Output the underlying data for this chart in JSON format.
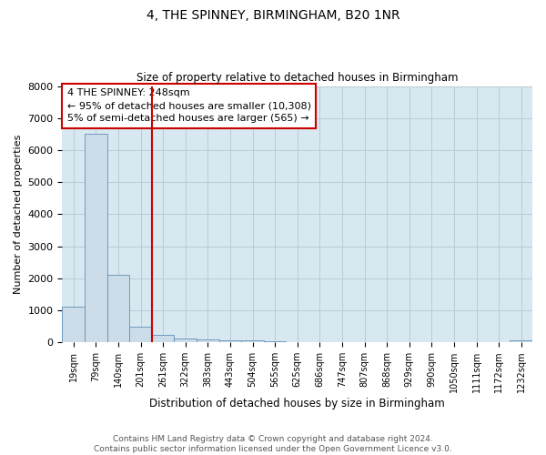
{
  "title": "4, THE SPINNEY, BIRMINGHAM, B20 1NR",
  "subtitle": "Size of property relative to detached houses in Birmingham",
  "xlabel": "Distribution of detached houses by size in Birmingham",
  "ylabel": "Number of detached properties",
  "footer_line1": "Contains HM Land Registry data © Crown copyright and database right 2024.",
  "footer_line2": "Contains public sector information licensed under the Open Government Licence v3.0.",
  "bar_color": "#ccdce8",
  "bar_edge_color": "#6090b8",
  "grid_color": "#b8ccd8",
  "annotation_box_color": "#cc0000",
  "vline_color": "#cc0000",
  "background_color": "#d8e8f0",
  "categories": [
    "19sqm",
    "79sqm",
    "140sqm",
    "201sqm",
    "261sqm",
    "322sqm",
    "383sqm",
    "443sqm",
    "504sqm",
    "565sqm",
    "625sqm",
    "686sqm",
    "747sqm",
    "807sqm",
    "868sqm",
    "929sqm",
    "990sqm",
    "1050sqm",
    "1111sqm",
    "1172sqm",
    "1232sqm"
  ],
  "values": [
    1100,
    6500,
    2100,
    500,
    230,
    130,
    100,
    60,
    50,
    30,
    0,
    0,
    0,
    0,
    0,
    0,
    0,
    0,
    0,
    0,
    50
  ],
  "vline_x": 3.5,
  "annotation_text": "4 THE SPINNEY: 248sqm\n← 95% of detached houses are smaller (10,308)\n5% of semi-detached houses are larger (565) →",
  "ylim": [
    0,
    8000
  ],
  "yticks": [
    0,
    1000,
    2000,
    3000,
    4000,
    5000,
    6000,
    7000,
    8000
  ]
}
